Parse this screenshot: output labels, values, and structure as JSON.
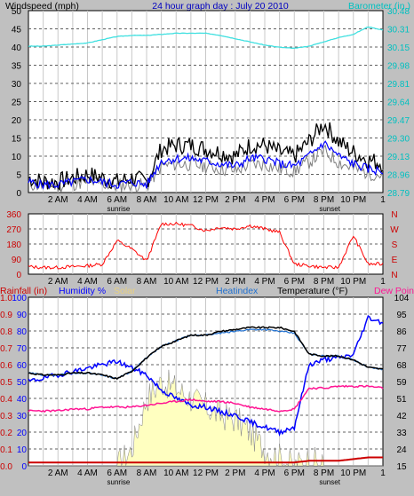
{
  "header": {
    "left_label": "Windspeed (mph)",
    "center_title": "24 hour graph day : July 20 2010",
    "right_label": "Barometer (in.)"
  },
  "panel3_labels": {
    "rainfall": "Rainfall (in)",
    "humidity": "Humidity %",
    "solar": "Solar",
    "heatindex": "Heatindex",
    "temperature": "Temperature (°F)",
    "dewpoint": "Dew Point"
  },
  "x_ticks": [
    "2 AM",
    "4 AM",
    "6 AM",
    "8 AM",
    "10 AM",
    "12 PM",
    "2 PM",
    "4 PM",
    "6 PM",
    "8 PM",
    "10 PM",
    "1"
  ],
  "x_notes": {
    "sunrise": "sunrise",
    "sunset": "sunset"
  },
  "colors": {
    "windspeed": "#000000",
    "windavg": "#0000ff",
    "gust_gray": "#808080",
    "barometer": "#40e0e0",
    "direction": "#ff0000",
    "temperature": "#000000",
    "heatindex": "#1e6fd0",
    "dewpoint": "#ff1493",
    "humidity": "#0000ff",
    "solar": "#ffffc0",
    "rainfall": "#cc0000",
    "hum_axis": "#0000ff",
    "baro_axis": "#00c0c0",
    "rain_axis": "#cc0000",
    "temp_axis": "#000000"
  },
  "panel1": {
    "wind_ticks": [
      "50",
      "45",
      "40",
      "35",
      "30",
      "25",
      "20",
      "15",
      "10",
      "5",
      "0"
    ],
    "baro_ticks": [
      "30.48",
      "30.31",
      "30.15",
      "29.98",
      "29.81",
      "29.64",
      "29.47",
      "29.30",
      "29.13",
      "28.96",
      "28.79"
    ]
  },
  "panel2": {
    "deg_ticks": [
      "360",
      "270",
      "180",
      "90",
      "0"
    ],
    "dir_labels": [
      "N",
      "W",
      "S",
      "E",
      "N"
    ]
  },
  "panel3": {
    "rain_ticks": [
      "1.0",
      "0.9",
      "0.8",
      "0.7",
      "0.6",
      "0.5",
      "0.4",
      "0.3",
      "0.2",
      "0.1",
      "0.0"
    ],
    "hum_ticks": [
      "100",
      "90",
      "80",
      "70",
      "60",
      "50",
      "40",
      "30",
      "20",
      "10",
      "0"
    ],
    "temp_ticks": [
      "104",
      "95",
      "86",
      "77",
      "68",
      "59",
      "51",
      "42",
      "33",
      "24",
      "15"
    ]
  },
  "chart_data": {
    "type": "line",
    "x_unit": "hour",
    "x": [
      0,
      1,
      2,
      3,
      4,
      5,
      6,
      7,
      8,
      9,
      10,
      11,
      12,
      13,
      14,
      15,
      16,
      17,
      18,
      19,
      20,
      21,
      22,
      23,
      24
    ],
    "series": [
      {
        "name": "Windspeed (mph)",
        "panel": 1,
        "values": [
          4,
          3,
          3,
          4,
          5,
          4,
          3,
          4,
          3,
          12,
          13,
          13,
          12,
          11,
          10,
          13,
          13,
          11,
          10,
          14,
          19,
          14,
          11,
          9,
          8
        ]
      },
      {
        "name": "Barometer (in.)",
        "panel": 1,
        "values": [
          30.15,
          30.15,
          30.16,
          30.17,
          30.18,
          30.21,
          30.24,
          30.25,
          30.25,
          30.26,
          30.27,
          30.27,
          30.27,
          30.25,
          30.22,
          30.19,
          30.16,
          30.14,
          30.13,
          30.15,
          30.19,
          30.23,
          30.26,
          30.33,
          30.3
        ]
      },
      {
        "panel": 2,
        "values": [
          45,
          40,
          40,
          45,
          50,
          60,
          200,
          150,
          80,
          300,
          300,
          290,
          260,
          280,
          270,
          290,
          270,
          250,
          60,
          50,
          40,
          40,
          230,
          60,
          60
        ]
      },
      {
        "name": "Temperature (°F)",
        "panel": 3,
        "values": [
          64,
          63,
          63,
          64,
          64,
          63,
          61,
          65,
          72,
          78,
          81,
          84,
          84,
          86,
          87,
          88,
          88,
          88,
          86,
          74,
          73,
          73,
          71,
          67,
          66
        ]
      },
      {
        "name": "Heatindex",
        "panel": 3,
        "values": [
          64,
          63,
          63,
          64,
          64,
          63,
          61,
          65,
          72,
          78,
          81,
          84,
          84,
          85,
          86,
          87,
          87,
          86,
          85,
          74,
          73,
          73,
          71,
          67,
          66
        ]
      },
      {
        "name": "Dew Point",
        "panel": 3,
        "values": [
          44,
          44,
          44,
          45,
          45,
          46,
          46,
          46,
          47,
          48,
          49,
          50,
          49,
          49,
          48,
          46,
          45,
          44,
          45,
          56,
          56,
          57,
          57,
          57,
          56
        ]
      },
      {
        "name": "Humidity %",
        "panel": 3,
        "values": [
          50,
          52,
          54,
          56,
          58,
          60,
          62,
          58,
          54,
          45,
          40,
          36,
          35,
          32,
          30,
          26,
          23,
          20,
          23,
          60,
          63,
          64,
          66,
          88,
          85
        ]
      },
      {
        "name": "Solar",
        "panel": 3,
        "values": [
          0,
          0,
          0,
          0,
          0,
          0,
          0,
          10,
          40,
          50,
          46,
          40,
          35,
          30,
          28,
          20,
          10,
          5,
          0,
          4,
          0,
          0,
          0,
          0,
          0
        ]
      },
      {
        "name": "Rainfall (in)",
        "panel": 3,
        "values": [
          0.02,
          0.02,
          0.02,
          0.02,
          0.02,
          0.02,
          0.02,
          0.02,
          0.02,
          0.02,
          0.02,
          0.02,
          0.02,
          0.02,
          0.02,
          0.02,
          0.02,
          0.02,
          0.02,
          0.03,
          0.03,
          0.03,
          0.04,
          0.05,
          0.05
        ]
      }
    ],
    "ylim": {
      "wind": [
        0,
        50
      ],
      "barometer": [
        28.79,
        30.48
      ],
      "direction": [
        0,
        360
      ],
      "rain": [
        0,
        1.0
      ],
      "humidity": [
        0,
        100
      ],
      "temperature": [
        15,
        104
      ]
    },
    "grid": true
  }
}
